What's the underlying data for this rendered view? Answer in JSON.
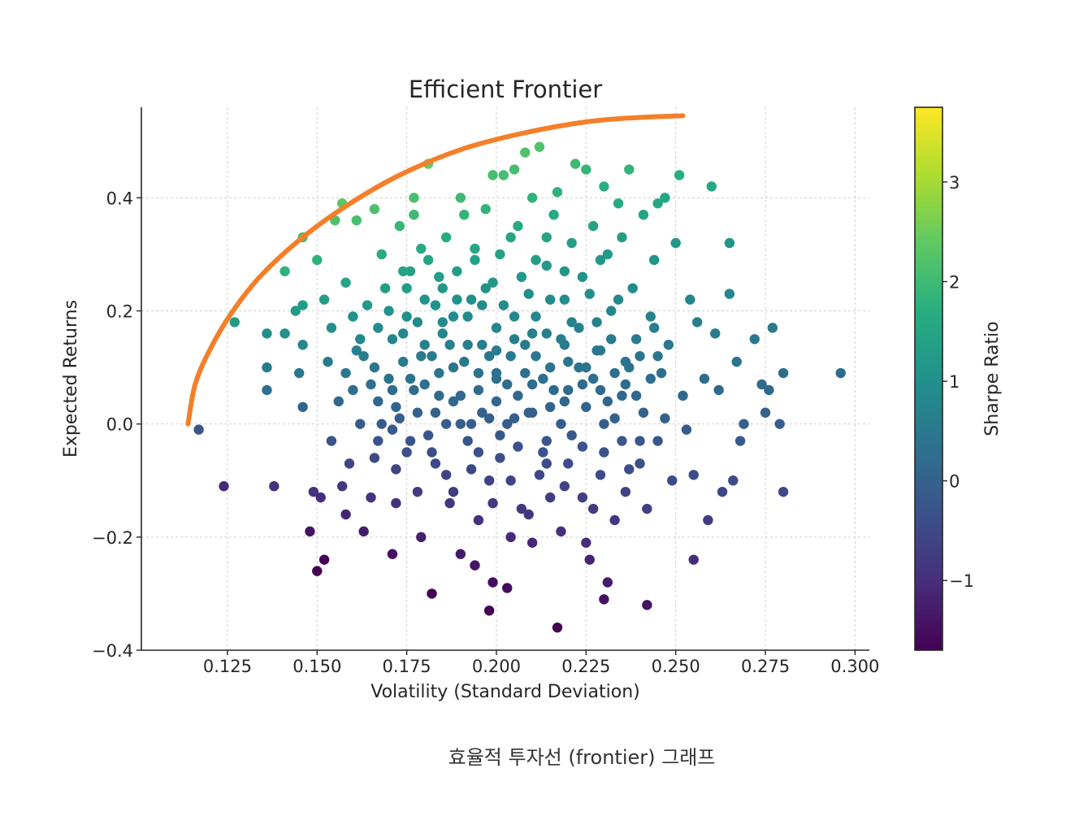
{
  "caption": "효율적 투자선 (frontier) 그래프",
  "chart_data": {
    "type": "scatter",
    "title": "Efficient Frontier",
    "xlabel": "Volatility (Standard Deviation)",
    "ylabel": "Expected Returns",
    "xlim": [
      0.101,
      0.304
    ],
    "ylim": [
      -0.4,
      0.56
    ],
    "xticks": [
      0.125,
      0.15,
      0.175,
      0.2,
      0.225,
      0.25,
      0.275,
      0.3
    ],
    "xtick_labels": [
      "0.125",
      "0.150",
      "0.175",
      "0.200",
      "0.225",
      "0.250",
      "0.275",
      "0.300"
    ],
    "yticks": [
      -0.4,
      -0.2,
      0.0,
      0.2,
      0.4
    ],
    "ytick_labels": [
      "−0.4",
      "−0.2",
      "0.0",
      "0.2",
      "0.4"
    ],
    "grid": true,
    "colorbar": {
      "label": "Sharpe Ratio",
      "colormap": "viridis",
      "range": [
        -1.7,
        3.75
      ],
      "ticks": [
        -1,
        0,
        1,
        2,
        3
      ],
      "tick_labels": [
        "−1",
        "0",
        "1",
        "2",
        "3"
      ]
    },
    "frontier": {
      "color": "#f47f2a",
      "x": [
        0.114,
        0.116,
        0.12,
        0.126,
        0.134,
        0.145,
        0.158,
        0.173,
        0.19,
        0.208,
        0.226,
        0.24,
        0.252
      ],
      "y": [
        0.0,
        0.07,
        0.13,
        0.195,
        0.26,
        0.325,
        0.385,
        0.44,
        0.485,
        0.515,
        0.535,
        0.542,
        0.545
      ]
    },
    "points": [
      [
        0.117,
        -0.01
      ],
      [
        0.124,
        -0.11
      ],
      [
        0.127,
        0.18
      ],
      [
        0.138,
        -0.11
      ],
      [
        0.136,
        0.16
      ],
      [
        0.136,
        0.1
      ],
      [
        0.136,
        0.06
      ],
      [
        0.141,
        0.27
      ],
      [
        0.141,
        0.16
      ],
      [
        0.146,
        0.33
      ],
      [
        0.146,
        0.21
      ],
      [
        0.144,
        0.2
      ],
      [
        0.146,
        0.14
      ],
      [
        0.145,
        0.09
      ],
      [
        0.146,
        0.03
      ],
      [
        0.149,
        -0.12
      ],
      [
        0.148,
        -0.19
      ],
      [
        0.15,
        -0.26
      ],
      [
        0.152,
        -0.24
      ],
      [
        0.151,
        -0.13
      ],
      [
        0.15,
        0.29
      ],
      [
        0.152,
        0.22
      ],
      [
        0.154,
        0.17
      ],
      [
        0.153,
        0.11
      ],
      [
        0.156,
        0.04
      ],
      [
        0.154,
        -0.03
      ],
      [
        0.157,
        -0.11
      ],
      [
        0.158,
        -0.16
      ],
      [
        0.159,
        -0.07
      ],
      [
        0.155,
        0.36
      ],
      [
        0.157,
        0.39
      ],
      [
        0.158,
        0.25
      ],
      [
        0.16,
        0.19
      ],
      [
        0.161,
        0.13
      ],
      [
        0.16,
        0.06
      ],
      [
        0.162,
        0.0
      ],
      [
        0.161,
        0.36
      ],
      [
        0.163,
        -0.19
      ],
      [
        0.165,
        -0.13
      ],
      [
        0.166,
        -0.06
      ],
      [
        0.167,
        0.04
      ],
      [
        0.166,
        0.1
      ],
      [
        0.167,
        0.17
      ],
      [
        0.168,
        0.3
      ],
      [
        0.166,
        0.38
      ],
      [
        0.164,
        0.21
      ],
      [
        0.169,
        0.24
      ],
      [
        0.171,
        0.15
      ],
      [
        0.17,
        0.08
      ],
      [
        0.171,
        -0.01
      ],
      [
        0.171,
        -0.23
      ],
      [
        0.172,
        -0.14
      ],
      [
        0.172,
        -0.08
      ],
      [
        0.173,
        0.35
      ],
      [
        0.173,
        0.01
      ],
      [
        0.174,
        0.11
      ],
      [
        0.175,
        0.19
      ],
      [
        0.176,
        0.27
      ],
      [
        0.177,
        0.37
      ],
      [
        0.177,
        0.4
      ],
      [
        0.176,
        -0.03
      ],
      [
        0.177,
        0.06
      ],
      [
        0.178,
        -0.12
      ],
      [
        0.179,
        -0.2
      ],
      [
        0.18,
        0.14
      ],
      [
        0.18,
        0.22
      ],
      [
        0.181,
        0.29
      ],
      [
        0.181,
        0.46
      ],
      [
        0.182,
        -0.3
      ],
      [
        0.182,
        -0.05
      ],
      [
        0.183,
        0.02
      ],
      [
        0.184,
        0.09
      ],
      [
        0.185,
        0.16
      ],
      [
        0.185,
        0.24
      ],
      [
        0.186,
        0.33
      ],
      [
        0.186,
        -0.09
      ],
      [
        0.187,
        -0.14
      ],
      [
        0.188,
        0.04
      ],
      [
        0.188,
        0.19
      ],
      [
        0.189,
        0.27
      ],
      [
        0.19,
        -0.23
      ],
      [
        0.19,
        0.4
      ],
      [
        0.191,
        0.37
      ],
      [
        0.191,
        0.11
      ],
      [
        0.192,
        -0.03
      ],
      [
        0.193,
        0.22
      ],
      [
        0.194,
        0.31
      ],
      [
        0.194,
        -0.25
      ],
      [
        0.195,
        -0.17
      ],
      [
        0.195,
        0.06
      ],
      [
        0.196,
        0.14
      ],
      [
        0.197,
        0.38
      ],
      [
        0.197,
        0.24
      ],
      [
        0.198,
        -0.1
      ],
      [
        0.198,
        -0.33
      ],
      [
        0.198,
        0.01
      ],
      [
        0.199,
        0.44
      ],
      [
        0.199,
        -0.28
      ],
      [
        0.2,
        0.17
      ],
      [
        0.2,
        0.09
      ],
      [
        0.201,
        0.3
      ],
      [
        0.201,
        -0.06
      ],
      [
        0.202,
        0.44
      ],
      [
        0.202,
        0.21
      ],
      [
        0.203,
        -0.29
      ],
      [
        0.203,
        0.0
      ],
      [
        0.204,
        0.12
      ],
      [
        0.204,
        -0.2
      ],
      [
        0.205,
        0.45
      ],
      [
        0.206,
        0.35
      ],
      [
        0.206,
        0.05
      ],
      [
        0.207,
        0.26
      ],
      [
        0.207,
        -0.15
      ],
      [
        0.208,
        0.48
      ],
      [
        0.208,
        0.14
      ],
      [
        0.209,
        0.02
      ],
      [
        0.21,
        0.4
      ],
      [
        0.21,
        -0.21
      ],
      [
        0.211,
        0.29
      ],
      [
        0.211,
        0.19
      ],
      [
        0.212,
        -0.09
      ],
      [
        0.212,
        0.49
      ],
      [
        0.213,
        0.08
      ],
      [
        0.214,
        0.33
      ],
      [
        0.214,
        -0.03
      ],
      [
        0.215,
        0.22
      ],
      [
        0.215,
        -0.13
      ],
      [
        0.216,
        0.37
      ],
      [
        0.217,
        0.41
      ],
      [
        0.217,
        -0.36
      ],
      [
        0.218,
        0.15
      ],
      [
        0.218,
        -0.19
      ],
      [
        0.219,
        0.27
      ],
      [
        0.219,
        0.04
      ],
      [
        0.22,
        -0.07
      ],
      [
        0.221,
        0.32
      ],
      [
        0.221,
        0.18
      ],
      [
        0.222,
        0.46
      ],
      [
        0.223,
        0.1
      ],
      [
        0.224,
        -0.04
      ],
      [
        0.225,
        0.45
      ],
      [
        0.225,
        -0.21
      ],
      [
        0.226,
        0.23
      ],
      [
        0.226,
        -0.24
      ],
      [
        0.227,
        0.35
      ],
      [
        0.227,
        -0.15
      ],
      [
        0.228,
        0.13
      ],
      [
        0.229,
        0.06
      ],
      [
        0.229,
        -0.09
      ],
      [
        0.23,
        0.42
      ],
      [
        0.23,
        -0.31
      ],
      [
        0.231,
        0.3
      ],
      [
        0.231,
        -0.28
      ],
      [
        0.232,
        0.2
      ],
      [
        0.233,
        0.01
      ],
      [
        0.233,
        -0.17
      ],
      [
        0.234,
        0.39
      ],
      [
        0.235,
        0.33
      ],
      [
        0.236,
        0.11
      ],
      [
        0.236,
        -0.12
      ],
      [
        0.237,
        0.45
      ],
      [
        0.238,
        0.24
      ],
      [
        0.239,
        0.05
      ],
      [
        0.24,
        -0.07
      ],
      [
        0.241,
        0.37
      ],
      [
        0.242,
        -0.15
      ],
      [
        0.242,
        -0.32
      ],
      [
        0.243,
        0.19
      ],
      [
        0.244,
        0.29
      ],
      [
        0.245,
        0.39
      ],
      [
        0.245,
        -0.03
      ],
      [
        0.246,
        0.09
      ],
      [
        0.247,
        0.4
      ],
      [
        0.248,
        0.14
      ],
      [
        0.249,
        -0.1
      ],
      [
        0.25,
        0.32
      ],
      [
        0.251,
        0.44
      ],
      [
        0.252,
        0.05
      ],
      [
        0.253,
        -0.01
      ],
      [
        0.254,
        0.22
      ],
      [
        0.255,
        -0.09
      ],
      [
        0.255,
        -0.24
      ],
      [
        0.256,
        0.18
      ],
      [
        0.258,
        0.08
      ],
      [
        0.259,
        -0.17
      ],
      [
        0.26,
        0.42
      ],
      [
        0.261,
        0.16
      ],
      [
        0.262,
        0.06
      ],
      [
        0.263,
        -0.12
      ],
      [
        0.265,
        0.32
      ],
      [
        0.265,
        0.23
      ],
      [
        0.266,
        -0.1
      ],
      [
        0.267,
        0.11
      ],
      [
        0.268,
        -0.03
      ],
      [
        0.269,
        0.0
      ],
      [
        0.272,
        0.15
      ],
      [
        0.274,
        0.07
      ],
      [
        0.275,
        0.02
      ],
      [
        0.276,
        0.06
      ],
      [
        0.277,
        0.17
      ],
      [
        0.279,
        0.0
      ],
      [
        0.28,
        -0.12
      ],
      [
        0.28,
        0.09
      ],
      [
        0.296,
        0.09
      ],
      [
        0.158,
        0.09
      ],
      [
        0.162,
        0.15
      ],
      [
        0.165,
        0.07
      ],
      [
        0.168,
        0.0
      ],
      [
        0.172,
        0.03
      ],
      [
        0.174,
        0.16
      ],
      [
        0.176,
        0.08
      ],
      [
        0.178,
        0.02
      ],
      [
        0.18,
        0.07
      ],
      [
        0.182,
        0.12
      ],
      [
        0.184,
        0.05
      ],
      [
        0.186,
        0.0
      ],
      [
        0.188,
        0.1
      ],
      [
        0.19,
        0.05
      ],
      [
        0.192,
        0.14
      ],
      [
        0.193,
        0.0
      ],
      [
        0.195,
        0.09
      ],
      [
        0.196,
        0.02
      ],
      [
        0.198,
        0.12
      ],
      [
        0.2,
        0.04
      ],
      [
        0.201,
        -0.02
      ],
      [
        0.203,
        0.07
      ],
      [
        0.205,
        0.15
      ],
      [
        0.206,
        -0.04
      ],
      [
        0.208,
        0.09
      ],
      [
        0.21,
        0.02
      ],
      [
        0.211,
        0.12
      ],
      [
        0.213,
        -0.05
      ],
      [
        0.214,
        0.16
      ],
      [
        0.216,
        0.06
      ],
      [
        0.218,
        0.0
      ],
      [
        0.22,
        0.11
      ],
      [
        0.221,
        -0.02
      ],
      [
        0.223,
        0.17
      ],
      [
        0.225,
        0.03
      ],
      [
        0.227,
        0.08
      ],
      [
        0.229,
        0.13
      ],
      [
        0.231,
        0.04
      ],
      [
        0.233,
        0.09
      ],
      [
        0.235,
        -0.03
      ],
      [
        0.237,
        0.1
      ],
      [
        0.239,
        0.15
      ],
      [
        0.241,
        0.02
      ],
      [
        0.243,
        0.08
      ],
      [
        0.245,
        0.12
      ],
      [
        0.247,
        0.01
      ],
      [
        0.183,
        -0.07
      ],
      [
        0.188,
        -0.12
      ],
      [
        0.193,
        -0.08
      ],
      [
        0.199,
        -0.14
      ],
      [
        0.204,
        -0.1
      ],
      [
        0.209,
        -0.16
      ],
      [
        0.214,
        -0.07
      ],
      [
        0.219,
        -0.11
      ],
      [
        0.224,
        -0.13
      ],
      [
        0.23,
        -0.05
      ],
      [
        0.237,
        -0.08
      ],
      [
        0.175,
        0.24
      ],
      [
        0.179,
        0.31
      ],
      [
        0.184,
        0.26
      ],
      [
        0.189,
        0.22
      ],
      [
        0.194,
        0.29
      ],
      [
        0.199,
        0.25
      ],
      [
        0.204,
        0.33
      ],
      [
        0.209,
        0.23
      ],
      [
        0.214,
        0.28
      ],
      [
        0.219,
        0.22
      ],
      [
        0.224,
        0.26
      ],
      [
        0.229,
        0.29
      ],
      [
        0.234,
        0.22
      ],
      [
        0.17,
        0.2
      ],
      [
        0.174,
        0.27
      ],
      [
        0.178,
        0.18
      ],
      [
        0.183,
        0.21
      ],
      [
        0.187,
        0.14
      ],
      [
        0.192,
        0.19
      ],
      [
        0.196,
        0.21
      ],
      [
        0.2,
        0.13
      ],
      [
        0.205,
        0.19
      ],
      [
        0.21,
        0.16
      ],
      [
        0.215,
        0.1
      ],
      [
        0.219,
        0.14
      ],
      [
        0.224,
        0.07
      ],
      [
        0.228,
        0.18
      ],
      [
        0.232,
        0.15
      ],
      [
        0.236,
        0.07
      ],
      [
        0.24,
        0.12
      ],
      [
        0.244,
        0.17
      ],
      [
        0.163,
        0.12
      ],
      [
        0.167,
        -0.03
      ],
      [
        0.171,
        0.06
      ],
      [
        0.175,
        -0.05
      ],
      [
        0.179,
        0.12
      ],
      [
        0.181,
        -0.02
      ],
      [
        0.185,
        0.18
      ],
      [
        0.19,
        0.0
      ],
      [
        0.195,
        -0.05
      ],
      [
        0.2,
        0.08
      ],
      [
        0.205,
        0.01
      ],
      [
        0.21,
        0.07
      ],
      [
        0.215,
        0.03
      ],
      [
        0.22,
        0.06
      ],
      [
        0.225,
        0.1
      ],
      [
        0.23,
        0.0
      ],
      [
        0.235,
        0.05
      ],
      [
        0.24,
        -0.03
      ]
    ]
  }
}
